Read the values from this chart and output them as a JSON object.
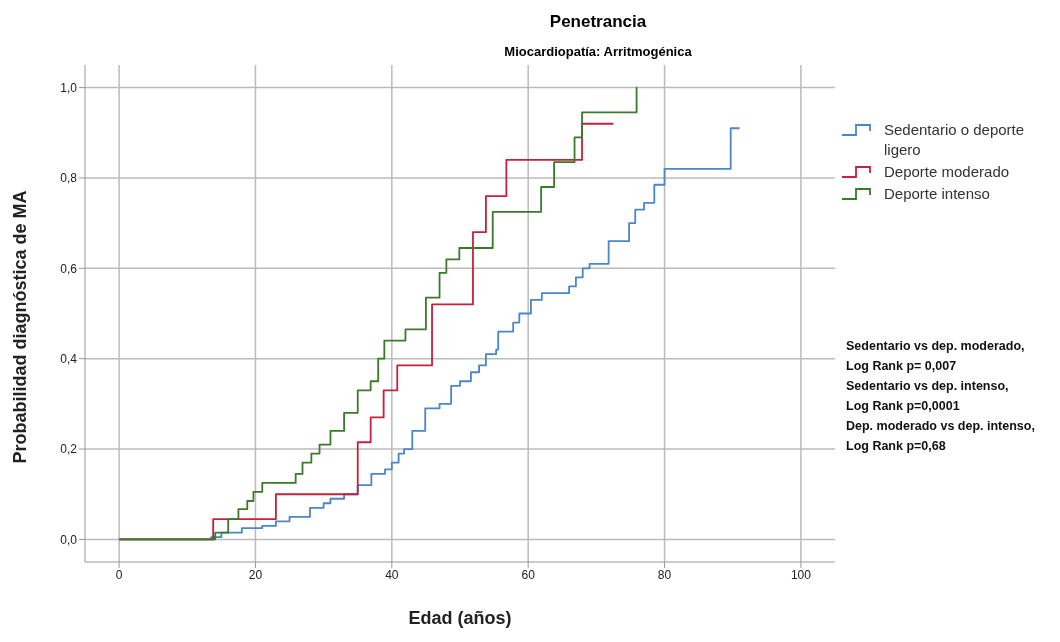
{
  "chart_data": {
    "type": "step",
    "title": "Penetrancia",
    "subtitle": "Miocardiopatía: Arritmogénica",
    "xlabel": "Edad (años)",
    "ylabel": "Probabilidad diagnóstica de MA",
    "xlim": [
      -5,
      105
    ],
    "xticks": [
      0,
      20,
      40,
      60,
      80,
      100
    ],
    "ylim": [
      -0.05,
      1.05
    ],
    "yticks": [
      {
        "value": 0,
        "label": "0,0"
      },
      {
        "value": 0.2,
        "label": "0,2"
      },
      {
        "value": 0.4,
        "label": "0,4"
      },
      {
        "value": 0.6,
        "label": "0,6"
      },
      {
        "value": 0.8,
        "label": "0,8"
      },
      {
        "value": 1,
        "label": "1,0"
      }
    ],
    "grid": true,
    "legend": "top right",
    "marker": "none",
    "line_style": "solid",
    "series": [
      {
        "name": "Sedentario o deporte ligero",
        "color": "#4a86c8",
        "x": [
          0,
          13.5,
          15,
          18,
          21,
          23,
          25,
          28,
          30,
          31,
          33,
          35,
          37,
          39,
          40,
          41,
          41.8,
          43,
          44.9,
          47,
          48.7,
          50,
          51.6,
          52.8,
          53.8,
          55.3,
          55.6,
          57.8,
          58.7,
          60.4,
          62,
          66,
          67,
          68,
          69,
          71.8,
          74.8,
          75.7,
          77,
          78.5,
          80,
          89.7,
          91
        ],
        "values": [
          0,
          0.005,
          0.015,
          0.025,
          0.03,
          0.04,
          0.05,
          0.07,
          0.08,
          0.09,
          0.1,
          0.12,
          0.145,
          0.155,
          0.17,
          0.19,
          0.2,
          0.24,
          0.29,
          0.3,
          0.34,
          0.35,
          0.37,
          0.385,
          0.41,
          0.42,
          0.46,
          0.48,
          0.5,
          0.53,
          0.545,
          0.56,
          0.58,
          0.6,
          0.61,
          0.66,
          0.7,
          0.73,
          0.745,
          0.785,
          0.82,
          0.91,
          0.91
        ]
      },
      {
        "name": "Deporte moderado",
        "color": "#c8203c",
        "x": [
          0,
          13.8,
          23,
          35,
          36.9,
          38.8,
          40.8,
          45.9,
          51.9,
          53.8,
          56.8,
          67.9,
          72.5
        ],
        "values": [
          0,
          0.045,
          0.1,
          0.215,
          0.27,
          0.33,
          0.385,
          0.52,
          0.68,
          0.76,
          0.84,
          0.92,
          0.92
        ]
      },
      {
        "name": "Deporte intenso",
        "color": "#3a7a2a",
        "x": [
          0,
          14.1,
          16,
          17.5,
          18.8,
          19.7,
          21,
          25.9,
          26.9,
          28.2,
          29.4,
          31,
          33,
          35,
          36.9,
          38,
          38.9,
          42,
          45,
          47,
          48,
          49.9,
          54.8,
          61.9,
          63.8,
          66.8,
          67.9,
          75.9,
          76
        ],
        "values": [
          0,
          0.015,
          0.045,
          0.067,
          0.085,
          0.105,
          0.125,
          0.145,
          0.17,
          0.19,
          0.21,
          0.24,
          0.28,
          0.33,
          0.35,
          0.4,
          0.44,
          0.465,
          0.535,
          0.59,
          0.62,
          0.645,
          0.725,
          0.78,
          0.835,
          0.89,
          0.945,
          1,
          1
        ]
      }
    ],
    "annotations": [
      "Sedentario vs dep. moderado,",
      "Log Rank p= 0,007",
      "Sedentario vs dep. intenso,",
      "Log Rank p=0,0001",
      "Dep. moderado vs dep. intenso,",
      "Log Rank p=0,68"
    ]
  }
}
